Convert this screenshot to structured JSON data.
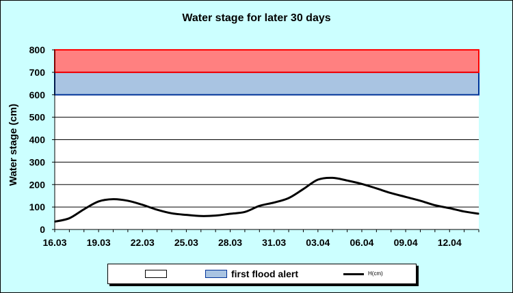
{
  "chart_data": {
    "type": "line",
    "title": "Water stage for later 30 days",
    "xlabel": "",
    "ylabel": "Water stage (cm)",
    "ylim": [
      0,
      800
    ],
    "yticks": [
      0,
      100,
      200,
      300,
      400,
      500,
      600,
      700,
      800
    ],
    "xlim": [
      0,
      29
    ],
    "xticks": [
      {
        "x": 0,
        "label": "16.03"
      },
      {
        "x": 3,
        "label": "19.03"
      },
      {
        "x": 6,
        "label": "22.03"
      },
      {
        "x": 9,
        "label": "25.03"
      },
      {
        "x": 12,
        "label": "28.03"
      },
      {
        "x": 15,
        "label": "31.03"
      },
      {
        "x": 18,
        "label": "03.04"
      },
      {
        "x": 21,
        "label": "06.04"
      },
      {
        "x": 24,
        "label": "09.04"
      },
      {
        "x": 27,
        "label": "12.04"
      }
    ],
    "bands": [
      {
        "from": 0,
        "to": 600,
        "color": "#ffffff",
        "border": "#000000"
      },
      {
        "from": 600,
        "to": 700,
        "name": "first flood alert",
        "color": "#a9c4e2",
        "border": "#003399"
      },
      {
        "from": 700,
        "to": 800,
        "color": "#ff8080",
        "border": "#ff0000"
      }
    ],
    "series": [
      {
        "name": "H(cm)",
        "color": "#000000",
        "x": [
          0,
          1,
          2,
          3,
          4,
          5,
          6,
          7,
          8,
          9,
          10,
          11,
          12,
          13,
          14,
          15,
          16,
          17,
          18,
          19,
          20,
          21,
          22,
          23,
          24,
          25,
          26,
          27,
          28,
          29
        ],
        "values": [
          35,
          50,
          90,
          125,
          135,
          128,
          110,
          88,
          72,
          65,
          60,
          62,
          70,
          78,
          105,
          120,
          140,
          180,
          222,
          230,
          218,
          203,
          183,
          162,
          145,
          128,
          108,
          95,
          80,
          70
        ]
      }
    ],
    "grid": true,
    "legend_position": "bottom"
  },
  "legend": {
    "band_blank_label": "",
    "band_alert_label": "first flood alert",
    "series_label": "H(cm)"
  },
  "colors": {
    "background": "#ccffff",
    "plot_background": "#ffffff",
    "line": "#000000"
  }
}
